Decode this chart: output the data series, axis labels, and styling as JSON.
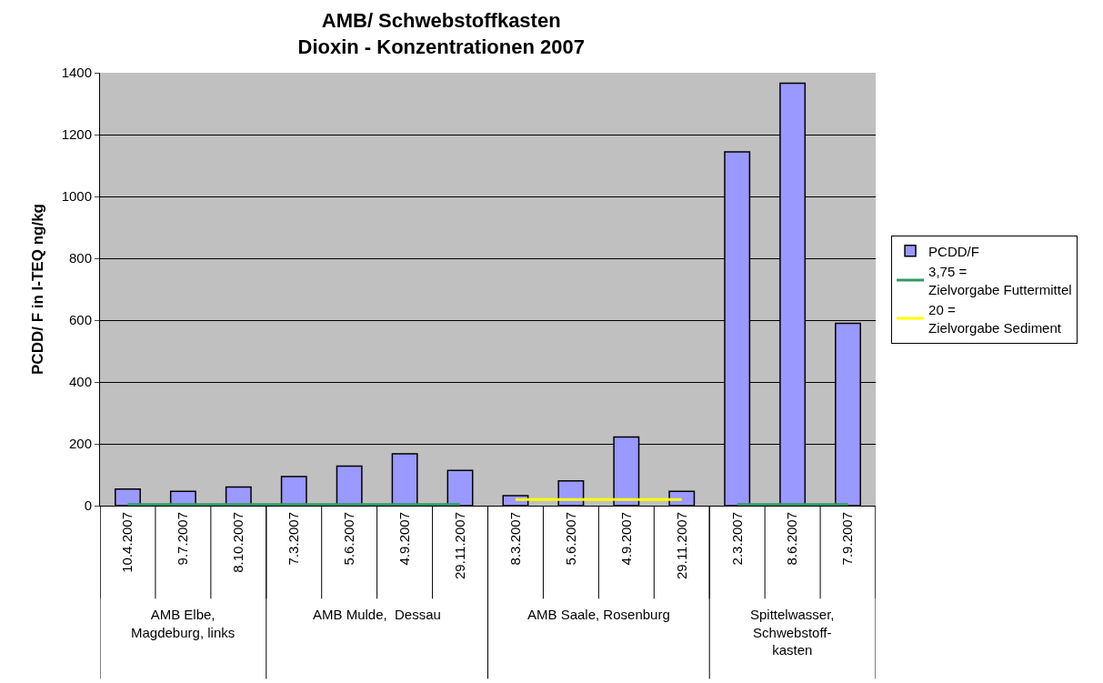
{
  "chart_data": {
    "type": "bar",
    "title": "AMB/ Schwebstoffkasten\nDioxin - Konzentrationen 2007",
    "ylabel": "PCDD/ F in I-TEQ ng/kg",
    "categories": [
      "10.4.2007",
      "9.7.2007",
      "8.10.2007",
      "7.3.2007",
      "5.6.2007",
      "4.9.2007",
      "29.11.2007",
      "8.3.2007",
      "5.6.2007",
      "4.9.2007",
      "29.11.2007",
      "2.3.2007",
      "8.6.2007",
      "7.9.2007"
    ],
    "annotations": [
      "AMB Elbe, Magdeburg, links",
      "AMB Mulde,  Dessau",
      "AMB Saale, Rosenburg",
      "Spittelwasser, Schwebstoff-kasten"
    ],
    "series": [
      {
        "name": "PCDD/F",
        "color": "#9999ff",
        "values": [
          54,
          46,
          60,
          94,
          128,
          168,
          114,
          32,
          80,
          222,
          46,
          1144,
          1366,
          590
        ]
      },
      {
        "name": "3,75 = Zielvorgabe Futtermittel",
        "type": "line",
        "color": "#339966",
        "values": [
          3.75,
          3.75,
          3.75,
          3.75,
          3.75,
          3.75,
          3.75,
          null,
          null,
          null,
          null,
          3.75,
          3.75,
          3.75
        ]
      },
      {
        "name": "20 = Zielvorgabe Sediment",
        "type": "line",
        "color": "#ffff00",
        "values": [
          null,
          null,
          null,
          null,
          null,
          null,
          null,
          20,
          20,
          20,
          20,
          null,
          null,
          null
        ]
      }
    ],
    "ylim": [
      0,
      1400
    ],
    "yticks": [
      0,
      200,
      400,
      600,
      800,
      1000,
      1200,
      1400
    ],
    "grid": "y",
    "legend": "right",
    "marker": "none"
  }
}
